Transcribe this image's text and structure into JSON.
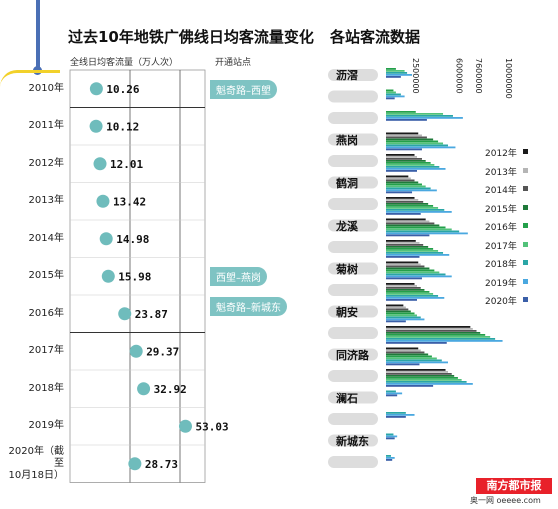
{
  "left_title": "过去10年地铁广佛线日均客流量变化",
  "right_title": "各站客流数据",
  "left_subtitle": "全线日均客流量（万人次）",
  "left_subtitle2": "开通站点",
  "notes": [
    {
      "text": "魁奇路–西塱",
      "year_index": 0
    },
    {
      "text": "西塱–燕岗",
      "year_index": 5
    },
    {
      "text": "魁奇路–新城东",
      "year_index": 6
    }
  ],
  "logo_text": "南方都市报",
  "logo_sub": "奥一网 oeeee.com",
  "colors": {
    "dot": "#6fbcbc",
    "2012": "#1a1a1a",
    "2013": "#b5b5b5",
    "2014": "#555555",
    "2015": "#1f7a3a",
    "2016": "#23a04a",
    "2017": "#52c27a",
    "2018": "#2aa6a6",
    "2019": "#4aa8e0",
    "2020": "#3a5fa8"
  },
  "chart_data": [
    {
      "type": "scatter",
      "title": "过去10年地铁广佛线日均客流量变化",
      "ylabel": "全线日均客流量（万人次）",
      "categories": [
        "2010年",
        "2011年",
        "2012年",
        "2013年",
        "2014年",
        "2015年",
        "2016年",
        "2017年",
        "2018年",
        "2019年",
        "2020年（截至10月18日）"
      ],
      "values": [
        10.26,
        10.12,
        12.01,
        13.42,
        14.98,
        15.98,
        23.87,
        29.37,
        32.92,
        53.03,
        28.73
      ],
      "value_labels": [
        "10.26",
        "10.12",
        "12.01",
        "13.42",
        "14.98",
        "15.98",
        "23.87",
        "29.37",
        "32.92",
        "53.03",
        "28.73"
      ],
      "year_lines": [
        {
          "label": "2010年",
          "lines": [
            "2010年"
          ]
        },
        {
          "label": "2011年",
          "lines": [
            "2011年"
          ]
        },
        {
          "label": "2012年",
          "lines": [
            "2012年"
          ]
        },
        {
          "label": "2013年",
          "lines": [
            "2013年"
          ]
        },
        {
          "label": "2014年",
          "lines": [
            "2014年"
          ]
        },
        {
          "label": "2015年",
          "lines": [
            "2015年"
          ]
        },
        {
          "label": "2016年",
          "lines": [
            "2016年"
          ]
        },
        {
          "label": "2017年",
          "lines": [
            "2017年"
          ]
        },
        {
          "label": "2018年",
          "lines": [
            "2018年"
          ]
        },
        {
          "label": "2019年",
          "lines": [
            "2019年"
          ]
        },
        {
          "label": "2020年",
          "lines": [
            "2020年（截",
            "至",
            "10月18日）"
          ]
        }
      ],
      "xlim": [
        0,
        60
      ]
    },
    {
      "type": "bar",
      "title": "各站客流数据",
      "orientation": "horizontal",
      "axis_ticks": [
        "2500000",
        "6000000",
        "7600000",
        "10000000"
      ],
      "xlim": [
        0,
        10000000
      ],
      "legend": [
        "2012年",
        "2013年",
        "2014年",
        "2015年",
        "2016年",
        "2017年",
        "2018年",
        "2019年",
        "2020年"
      ],
      "legend_placement": "right",
      "stations_labeled": [
        "沥滘",
        "燕岗",
        "鹤洞",
        "龙溪",
        "菊树",
        "朝安",
        "同济路",
        "澜石",
        "新城东"
      ],
      "rows": [
        {
          "label": "沥滘",
          "series": {
            "2016年": 800000,
            "2017年": 1500000,
            "2018年": 1700000,
            "2019年": 2100000,
            "2020年": 1200000
          }
        },
        {
          "label": "",
          "series": {
            "2016年": 600000,
            "2017年": 800000,
            "2018年": 1200000,
            "2019年": 1500000,
            "2020年": 700000
          }
        },
        {
          "label": "",
          "series": {
            "2016年": 2400000,
            "2017年": 4600000,
            "2018年": 5400000,
            "2019年": 6200000,
            "2020年": 3300000
          }
        },
        {
          "label": "燕岗",
          "series": {
            "2012年": 2600000,
            "2013年": 2900000,
            "2014年": 3300000,
            "2015年": 3800000,
            "2016年": 4200000,
            "2017年": 4600000,
            "2018年": 5000000,
            "2019年": 5600000,
            "2020年": 2900000
          }
        },
        {
          "label": "",
          "series": {
            "2012年": 2300000,
            "2013年": 2500000,
            "2014年": 2900000,
            "2015年": 3200000,
            "2016年": 3600000,
            "2017年": 3900000,
            "2018年": 4300000,
            "2019年": 4800000,
            "2020年": 2500000
          }
        },
        {
          "label": "鹤洞",
          "series": {
            "2012年": 1800000,
            "2013年": 2000000,
            "2014年": 2300000,
            "2015年": 2600000,
            "2016年": 2900000,
            "2017年": 3200000,
            "2018年": 3600000,
            "2019年": 4100000,
            "2020年": 2100000
          }
        },
        {
          "label": "",
          "series": {
            "2012年": 2300000,
            "2013年": 2600000,
            "2014年": 3000000,
            "2015年": 3400000,
            "2016年": 3800000,
            "2017年": 4200000,
            "2018年": 4700000,
            "2019年": 5300000,
            "2020年": 2800000
          }
        },
        {
          "label": "龙溪",
          "series": {
            "2012年": 3200000,
            "2013年": 3500000,
            "2014年": 3900000,
            "2015年": 4300000,
            "2016年": 4800000,
            "2017年": 5300000,
            "2018年": 5900000,
            "2019年": 6600000,
            "2020年": 3500000
          }
        },
        {
          "label": "",
          "series": {
            "2012年": 2400000,
            "2013年": 2700000,
            "2014年": 3000000,
            "2015年": 3400000,
            "2016年": 3800000,
            "2017年": 4200000,
            "2018年": 4600000,
            "2019年": 5100000,
            "2020年": 2700000
          }
        },
        {
          "label": "菊树",
          "series": {
            "2012年": 2600000,
            "2013年": 2800000,
            "2014年": 3100000,
            "2015年": 3500000,
            "2016年": 3900000,
            "2017年": 4300000,
            "2018年": 4800000,
            "2019年": 5300000,
            "2020年": 2900000
          }
        },
        {
          "label": "",
          "series": {
            "2012年": 2300000,
            "2013年": 2500000,
            "2014年": 2800000,
            "2015年": 3100000,
            "2016年": 3500000,
            "2017年": 3800000,
            "2018年": 4200000,
            "2019年": 4700000,
            "2020年": 2500000
          }
        },
        {
          "label": "朝安",
          "series": {
            "2012年": 1400000,
            "2013年": 1600000,
            "2014年": 1800000,
            "2015年": 2000000,
            "2016年": 2300000,
            "2017年": 2500000,
            "2018年": 2800000,
            "2019年": 3100000,
            "2020年": 1600000
          }
        },
        {
          "label": "",
          "series": {
            "2012年": 6800000,
            "2013年": 7000000,
            "2014年": 7300000,
            "2015年": 7600000,
            "2016年": 8000000,
            "2017年": 8400000,
            "2018年": 8800000,
            "2019年": 9400000,
            "2020年": 4900000
          }
        },
        {
          "label": "同济路",
          "series": {
            "2012年": 2600000,
            "2013年": 2800000,
            "2014年": 3100000,
            "2015年": 3400000,
            "2016年": 3700000,
            "2017年": 4100000,
            "2018年": 4500000,
            "2019年": 5000000,
            "2020年": 2700000
          }
        },
        {
          "label": "",
          "series": {
            "2012年": 4800000,
            "2013年": 5000000,
            "2014年": 5300000,
            "2015年": 5500000,
            "2016年": 5800000,
            "2017年": 6100000,
            "2018年": 6500000,
            "2019年": 7000000,
            "2020年": 3800000
          }
        },
        {
          "label": "澜石",
          "series": {
            "2018年": 800000,
            "2019年": 1300000,
            "2020年": 900000
          }
        },
        {
          "label": "",
          "series": {
            "2018年": 1600000,
            "2019年": 2300000,
            "2020年": 1600000
          }
        },
        {
          "label": "新城东",
          "series": {
            "2018年": 600000,
            "2019年": 900000,
            "2020年": 700000
          }
        },
        {
          "label": "",
          "series": {
            "2018年": 400000,
            "2019年": 700000,
            "2020年": 500000
          }
        }
      ]
    }
  ]
}
